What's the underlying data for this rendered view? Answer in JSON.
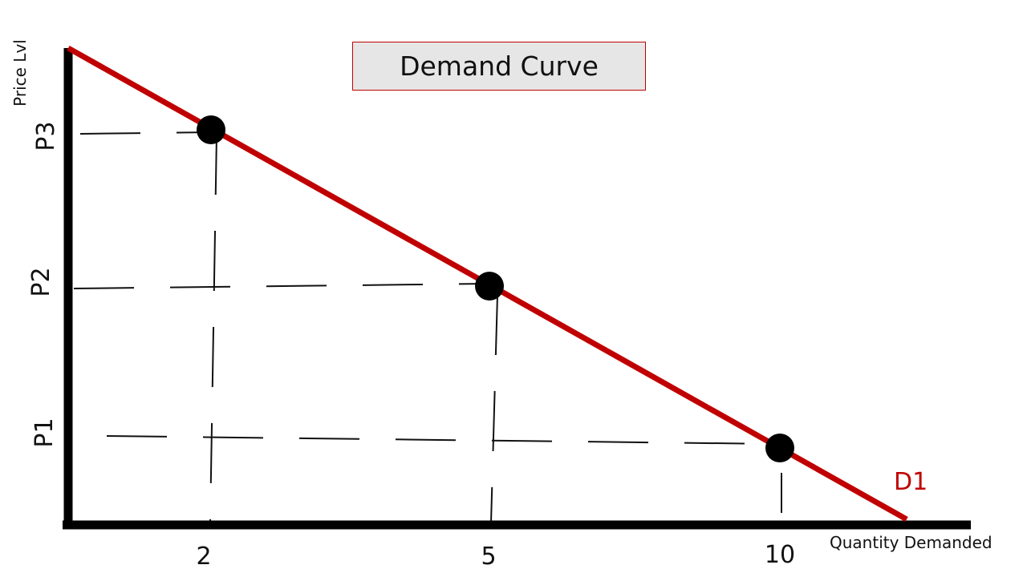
{
  "chart_data": {
    "type": "line",
    "title": "Demand Curve",
    "xlabel": "Quantity Demanded",
    "ylabel": "Price Lvl",
    "x_ticks": [
      "2",
      "5",
      "10"
    ],
    "y_ticks": [
      "P1",
      "P2",
      "P3"
    ],
    "series": [
      {
        "name": "D1",
        "color": "#c00000",
        "points": [
          {
            "x": 2,
            "y": "P3"
          },
          {
            "x": 5,
            "y": "P2"
          },
          {
            "x": 10,
            "y": "P1"
          }
        ]
      }
    ],
    "axis_color": "#000000",
    "guides": "dashed",
    "legend": "none"
  }
}
